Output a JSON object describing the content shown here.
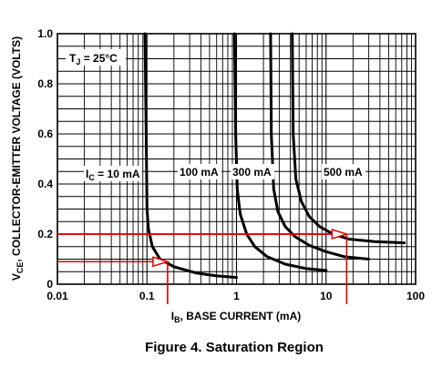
{
  "chart_data": {
    "type": "line",
    "x_scale": "log",
    "y_scale": "linear",
    "xlim": [
      0.01,
      100
    ],
    "ylim": [
      0,
      1.0
    ],
    "grid": true,
    "x_ticks": [
      "0.01",
      "0.1",
      "1",
      "10",
      "100"
    ],
    "y_ticks": [
      "0",
      "0.2",
      "0.4",
      "0.6",
      "0.8",
      "1.0"
    ],
    "xlabel": "I",
    "xlabel_sub": "B",
    "xlabel_rest": ", BASE CURRENT (mA)",
    "ylabel": "V",
    "ylabel_sub": "CE",
    "ylabel_rest": ", COLLECTOR-EMITTER VOLTAGE (VOLTS)",
    "condition_label": "T",
    "condition_sub": "J",
    "condition_rest": " = 25°C",
    "caption": "Figure 4. Saturation Region",
    "series": [
      {
        "name": "I",
        "name_sub": "C",
        "name_rest": " = 10 mA",
        "points": [
          [
            0.095,
            1.0
          ],
          [
            0.098,
            0.6
          ],
          [
            0.1,
            0.3
          ],
          [
            0.104,
            0.22
          ],
          [
            0.115,
            0.15
          ],
          [
            0.14,
            0.1
          ],
          [
            0.2,
            0.07
          ],
          [
            0.35,
            0.045
          ],
          [
            0.6,
            0.033
          ],
          [
            1.0,
            0.027
          ]
        ]
      },
      {
        "name": "100 mA",
        "points": [
          [
            0.95,
            1.0
          ],
          [
            0.98,
            0.6
          ],
          [
            1.02,
            0.38
          ],
          [
            1.1,
            0.28
          ],
          [
            1.3,
            0.2
          ],
          [
            1.6,
            0.15
          ],
          [
            2.2,
            0.11
          ],
          [
            3.5,
            0.08
          ],
          [
            6,
            0.062
          ],
          [
            10,
            0.055
          ]
        ]
      },
      {
        "name": "300 mA",
        "points": [
          [
            2.4,
            1.0
          ],
          [
            2.45,
            0.6
          ],
          [
            2.6,
            0.38
          ],
          [
            2.9,
            0.29
          ],
          [
            3.5,
            0.23
          ],
          [
            4.5,
            0.19
          ],
          [
            6.5,
            0.155
          ],
          [
            10,
            0.13
          ],
          [
            16,
            0.11
          ],
          [
            30,
            0.1
          ]
        ]
      },
      {
        "name": "500 mA",
        "points": [
          [
            4.2,
            1.0
          ],
          [
            4.3,
            0.6
          ],
          [
            4.6,
            0.42
          ],
          [
            5.3,
            0.33
          ],
          [
            6.5,
            0.27
          ],
          [
            8.5,
            0.23
          ],
          [
            12,
            0.2
          ],
          [
            18,
            0.18
          ],
          [
            35,
            0.17
          ],
          [
            75,
            0.165
          ]
        ]
      }
    ],
    "markers": [
      {
        "y": 0.09,
        "x": 0.17,
        "color": "#e00000"
      },
      {
        "y": 0.2,
        "x": 17,
        "color": "#e00000"
      }
    ],
    "marker_hline": {
      "y": 0.2,
      "x_from": 0.01,
      "x_to": 17,
      "color": "#e00000"
    },
    "colors": {
      "curve": "#000000",
      "grid": "#000000",
      "annotation": "#e00000"
    }
  }
}
